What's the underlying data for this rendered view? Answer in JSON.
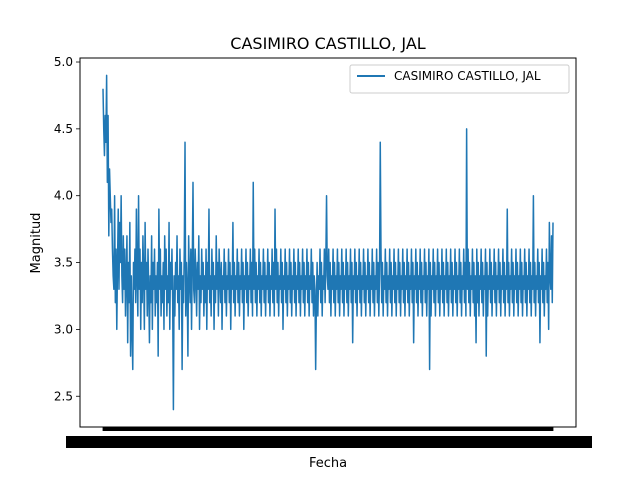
{
  "chart_data": {
    "type": "line",
    "title": "CASIMIRO CASTILLO, JAL",
    "xlabel": "Fecha",
    "ylabel": "Magnitud",
    "ylim": [
      2.27,
      5.03
    ],
    "yticks": [
      2.5,
      3.0,
      3.5,
      4.0,
      4.5,
      5.0
    ],
    "ytick_labels": [
      "2.5",
      "3.0",
      "3.5",
      "4.0",
      "4.5",
      "5.0"
    ],
    "x_tick_labels_note": "dense overlapping date labels (illegible)",
    "legend": {
      "position": "top-right",
      "entries": [
        "CASIMIRO CASTILLO, JAL"
      ]
    },
    "colors": {
      "series": "#1f77b4"
    },
    "series": [
      {
        "name": "CASIMIRO CASTILLO, JAL",
        "values": [
          4.8,
          4.5,
          4.3,
          4.6,
          4.4,
          4.9,
          4.1,
          4.6,
          3.7,
          4.2,
          4.0,
          3.8,
          3.9,
          3.6,
          3.4,
          3.3,
          4.0,
          3.2,
          3.6,
          3.0,
          3.5,
          3.9,
          3.3,
          3.8,
          3.5,
          4.0,
          3.4,
          3.2,
          3.7,
          3.3,
          3.6,
          3.1,
          3.4,
          3.7,
          2.9,
          3.5,
          3.2,
          3.8,
          2.8,
          3.4,
          3.0,
          2.7,
          3.5,
          3.3,
          3.6,
          3.2,
          3.9,
          3.4,
          3.1,
          4.0,
          3.3,
          3.6,
          3.0,
          3.5,
          3.2,
          3.7,
          3.4,
          3.0,
          3.8,
          3.3,
          3.5,
          3.1,
          3.6,
          3.3,
          2.9,
          3.4,
          3.2,
          3.7,
          3.0,
          3.5,
          3.3,
          3.6,
          3.1,
          3.4,
          3.2,
          3.5,
          2.8,
          3.9,
          3.3,
          3.6,
          3.1,
          3.4,
          3.2,
          3.5,
          3.0,
          3.7,
          3.3,
          3.6,
          3.1,
          3.4,
          3.2,
          3.8,
          3.0,
          3.5,
          3.3,
          3.6,
          3.2,
          2.4,
          3.4,
          3.1,
          3.5,
          3.3,
          3.7,
          3.2,
          3.4,
          3.0,
          3.6,
          3.3,
          3.5,
          2.7,
          3.4,
          3.2,
          3.6,
          4.4,
          3.1,
          3.5,
          3.3,
          2.8,
          3.7,
          3.4,
          3.2,
          3.6,
          3.0,
          3.5,
          4.1,
          3.3,
          3.2,
          3.6,
          3.4,
          3.1,
          3.5,
          3.3,
          3.7,
          3.0,
          3.4,
          3.2,
          3.6,
          3.3,
          3.5,
          3.1,
          3.4,
          3.2,
          3.6,
          3.0,
          3.5,
          3.3,
          3.9,
          3.2,
          3.4,
          3.1,
          3.6,
          3.3,
          3.5,
          3.0,
          3.4,
          3.2,
          3.7,
          3.3,
          3.5,
          3.1,
          3.6,
          3.4,
          3.2,
          3.5,
          3.0,
          3.4,
          3.3,
          3.6,
          3.2,
          3.5,
          3.1,
          3.4,
          3.3,
          3.6,
          3.2,
          3.5,
          3.0,
          3.4,
          3.3,
          3.8,
          3.2,
          3.5,
          3.1,
          3.4,
          3.3,
          3.6,
          3.2,
          3.5,
          3.1,
          3.4,
          3.3,
          3.6,
          3.2,
          3.5,
          3.0,
          3.4,
          3.3,
          3.6,
          3.2,
          3.5,
          3.1,
          3.4,
          3.3,
          3.6,
          3.2,
          3.5,
          3.1,
          4.1,
          3.3,
          3.6,
          3.2,
          3.5,
          3.1,
          3.4,
          3.3,
          3.6,
          3.2,
          3.5,
          3.1,
          3.4,
          3.3,
          3.6,
          3.2,
          3.5,
          3.1,
          3.4,
          3.3,
          3.6,
          3.2,
          3.5,
          3.1,
          3.4,
          3.3,
          3.6,
          3.2,
          3.5,
          3.1,
          3.9,
          3.3,
          3.6,
          3.2,
          3.5,
          3.1,
          3.4,
          3.3,
          3.6,
          3.2,
          3.5,
          3.0,
          3.4,
          3.3,
          3.6,
          3.2,
          3.5,
          3.1,
          3.4,
          3.3,
          3.6,
          3.2,
          3.5,
          3.1,
          3.4,
          3.3,
          3.6,
          3.2,
          3.5,
          3.1,
          3.4,
          3.3,
          3.6,
          3.2,
          3.5,
          3.1,
          3.4,
          3.3,
          3.6,
          3.2,
          3.5,
          3.1,
          3.4,
          3.3,
          3.6,
          3.2,
          3.5,
          3.1,
          3.4,
          3.3,
          3.6,
          3.2,
          3.5,
          3.1,
          3.4,
          3.3,
          2.7,
          3.2,
          3.5,
          3.1,
          3.4,
          3.3,
          3.6,
          3.2,
          3.5,
          3.1,
          3.4,
          3.3,
          3.6,
          3.2,
          3.5,
          4.0,
          3.4,
          3.3,
          3.6,
          3.2,
          3.5,
          3.1,
          3.4,
          3.3,
          3.6,
          3.2,
          3.5,
          3.1,
          3.4,
          3.3,
          3.6,
          3.2,
          3.5,
          3.1,
          3.4,
          3.3,
          3.6,
          3.2,
          3.5,
          3.1,
          3.4,
          3.3,
          3.6,
          3.2,
          3.5,
          3.1,
          3.4,
          3.3,
          3.6,
          3.2,
          3.5,
          2.9,
          3.4,
          3.3,
          3.6,
          3.2,
          3.5,
          3.1,
          3.4,
          3.3,
          3.6,
          3.2,
          3.5,
          3.1,
          3.4,
          3.3,
          3.6,
          3.2,
          3.5,
          3.1,
          3.4,
          3.3,
          3.6,
          3.2,
          3.5,
          3.1,
          3.4,
          3.3,
          3.6,
          3.2,
          3.5,
          3.1,
          3.4,
          3.3,
          3.6,
          3.2,
          3.5,
          3.1,
          3.4,
          4.4,
          3.6,
          3.2,
          3.5,
          3.1,
          3.4,
          3.3,
          3.6,
          3.2,
          3.5,
          3.1,
          3.4,
          3.3,
          3.6,
          3.2,
          3.5,
          3.1,
          3.4,
          3.3,
          3.6,
          3.2,
          3.5,
          3.1,
          3.4,
          3.3,
          3.6,
          3.2,
          3.5,
          3.1,
          3.4,
          3.3,
          3.6,
          3.2,
          3.5,
          3.1,
          3.4,
          3.3,
          3.6,
          3.2,
          3.5,
          3.1,
          3.4,
          3.3,
          3.6,
          3.2,
          3.5,
          2.9,
          3.4,
          3.3,
          3.6,
          3.2,
          3.5,
          3.1,
          3.4,
          3.3,
          3.6,
          3.2,
          3.5,
          3.1,
          3.4,
          3.3,
          3.6,
          3.2,
          3.5,
          3.1,
          3.4,
          3.3,
          3.6,
          2.7,
          3.5,
          3.1,
          3.4,
          3.3,
          3.6,
          3.2,
          3.5,
          3.1,
          3.4,
          3.3,
          3.6,
          3.2,
          3.5,
          3.1,
          3.4,
          3.3,
          3.6,
          3.2,
          3.5,
          3.1,
          3.4,
          3.3,
          3.6,
          3.2,
          3.5,
          3.1,
          3.4,
          3.3,
          3.6,
          3.2,
          3.5,
          3.1,
          3.4,
          3.3,
          3.6,
          3.2,
          3.5,
          3.1,
          3.4,
          3.3,
          3.6,
          3.2,
          3.5,
          3.1,
          3.4,
          3.3,
          3.6,
          3.2,
          3.5,
          3.1,
          4.5,
          3.3,
          3.6,
          3.2,
          3.5,
          3.1,
          3.4,
          3.3,
          3.6,
          3.2,
          3.5,
          3.1,
          3.4,
          2.9,
          3.6,
          3.2,
          3.5,
          3.1,
          3.4,
          3.3,
          3.6,
          3.2,
          3.5,
          3.1,
          3.4,
          3.3,
          3.6,
          2.8,
          3.5,
          3.1,
          3.4,
          3.3,
          3.6,
          3.2,
          3.5,
          3.1,
          3.4,
          3.3,
          3.6,
          3.2,
          3.5,
          3.1,
          3.4,
          3.3,
          3.6,
          3.2,
          3.5,
          3.1,
          3.4,
          3.3,
          3.6,
          3.2,
          3.5,
          3.1,
          3.4,
          3.3,
          3.9,
          3.2,
          3.5,
          3.1,
          3.4,
          3.3,
          3.6,
          3.2,
          3.5,
          3.1,
          3.4,
          3.3,
          3.6,
          3.2,
          3.5,
          3.1,
          3.4,
          3.3,
          3.6,
          3.2,
          3.5,
          3.1,
          3.4,
          3.3,
          3.6,
          3.2,
          3.5,
          3.1,
          3.4,
          3.3,
          3.6,
          3.2,
          3.5,
          3.1,
          3.4,
          3.3,
          4.0,
          3.2,
          3.5,
          3.1,
          3.4,
          3.3,
          3.6,
          3.2,
          3.5,
          2.9,
          3.4,
          3.3,
          3.6,
          3.2,
          3.5,
          3.1,
          3.4,
          3.3,
          3.6,
          3.2,
          3.5,
          3.0,
          3.8,
          3.4,
          3.3,
          3.7,
          3.2,
          3.8
        ]
      }
    ]
  }
}
